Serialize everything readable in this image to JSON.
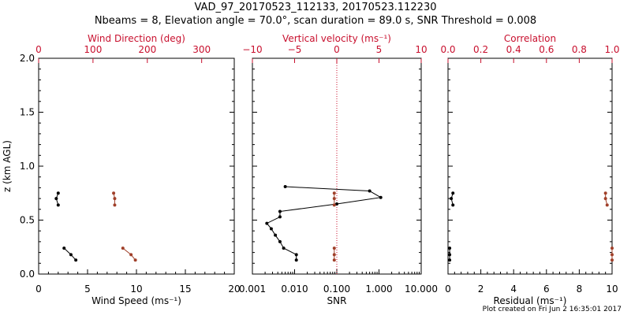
{
  "title": "VAD_97_20170523_112133, 20170523.112230",
  "subtitle": "Nbeams = 8, Elevation angle = 70.0°, scan duration = 89.0 s, SNR Threshold = 0.008",
  "footer": "Plot created on Fri Jun  2 16:35:01 2017",
  "colors": {
    "black": "#000000",
    "red": "#c8102e",
    "direction_series": "#a0402a"
  },
  "chart_data": [
    {
      "type": "line",
      "panel": "wind",
      "ylabel": "z (km AGL)",
      "ylim": [
        0,
        2.0
      ],
      "yticks": [
        "0.0",
        "0.5",
        "1.0",
        "1.5",
        "2.0"
      ],
      "xlabel": "Wind Speed (ms⁻¹)",
      "xlim": [
        0,
        20
      ],
      "xticks": [
        "0",
        "5",
        "10",
        "15",
        "20"
      ],
      "top_xlabel": "Wind Direction (deg)",
      "top_xlim": [
        0,
        360
      ],
      "top_xticks": [
        "0",
        "100",
        "200",
        "300"
      ],
      "series": [
        {
          "axis": "bottom",
          "color": "black",
          "segments": [
            [
              [
                2.0,
                0.64
              ],
              [
                1.8,
                0.7
              ],
              [
                2.0,
                0.75
              ]
            ],
            [
              [
                2.6,
                0.24
              ],
              [
                3.3,
                0.18
              ],
              [
                3.8,
                0.13
              ]
            ]
          ]
        },
        {
          "axis": "top",
          "color": "red",
          "segments": [
            [
              [
                140,
                0.64
              ],
              [
                140,
                0.7
              ],
              [
                138,
                0.75
              ]
            ],
            [
              [
                155,
                0.24
              ],
              [
                170,
                0.18
              ],
              [
                178,
                0.13
              ]
            ]
          ]
        }
      ]
    },
    {
      "type": "line",
      "panel": "snr",
      "xlabel": "SNR",
      "xscale": "log",
      "xlim": [
        0.001,
        10
      ],
      "xticks": [
        "0.001",
        "0.010",
        "0.100",
        "1.000",
        "10.000"
      ],
      "top_xlabel": "Vertical velocity (ms⁻¹)",
      "top_xlim": [
        -10,
        10
      ],
      "top_xticks": [
        "−10",
        "−5",
        "0",
        "5",
        "10"
      ],
      "series": [
        {
          "axis": "bottom",
          "color": "black",
          "segments": [
            [
              [
                0.006,
                0.81
              ],
              [
                0.6,
                0.77
              ],
              [
                1.1,
                0.71
              ],
              [
                0.1,
                0.65
              ],
              [
                0.0045,
                0.58
              ],
              [
                0.0045,
                0.53
              ],
              [
                0.0022,
                0.47
              ],
              [
                0.0028,
                0.42
              ],
              [
                0.0035,
                0.36
              ],
              [
                0.0045,
                0.3
              ],
              [
                0.0055,
                0.24
              ],
              [
                0.011,
                0.18
              ],
              [
                0.011,
                0.13
              ]
            ]
          ]
        },
        {
          "axis": "top",
          "color": "red",
          "segments": [
            [
              [
                -0.3,
                0.64
              ],
              [
                -0.3,
                0.7
              ],
              [
                -0.3,
                0.75
              ]
            ],
            [
              [
                -0.3,
                0.24
              ],
              [
                -0.3,
                0.18
              ],
              [
                -0.3,
                0.13
              ]
            ]
          ]
        }
      ],
      "reference_line": {
        "axis": "top",
        "value": 0,
        "style": "dotted",
        "color": "red"
      }
    },
    {
      "type": "scatter",
      "panel": "residual",
      "xlabel": "Residual (ms⁻¹)",
      "xlim": [
        0,
        10
      ],
      "xticks": [
        "0",
        "2",
        "4",
        "6",
        "8",
        "10"
      ],
      "top_xlabel": "Correlation",
      "top_xlim": [
        0,
        1
      ],
      "top_xticks": [
        "0.0",
        "0.2",
        "0.4",
        "0.6",
        "0.8",
        "1.0"
      ],
      "series": [
        {
          "axis": "bottom",
          "color": "black",
          "segments": [
            [
              [
                0.3,
                0.64
              ],
              [
                0.2,
                0.7
              ],
              [
                0.3,
                0.75
              ]
            ],
            [
              [
                0.1,
                0.24
              ],
              [
                0.1,
                0.18
              ],
              [
                0.1,
                0.13
              ]
            ]
          ]
        },
        {
          "axis": "top",
          "color": "red",
          "segments": [
            [
              [
                0.97,
                0.64
              ],
              [
                0.96,
                0.7
              ],
              [
                0.96,
                0.75
              ]
            ],
            [
              [
                1.0,
                0.24
              ],
              [
                1.0,
                0.18
              ],
              [
                1.0,
                0.13
              ]
            ]
          ]
        }
      ]
    }
  ]
}
